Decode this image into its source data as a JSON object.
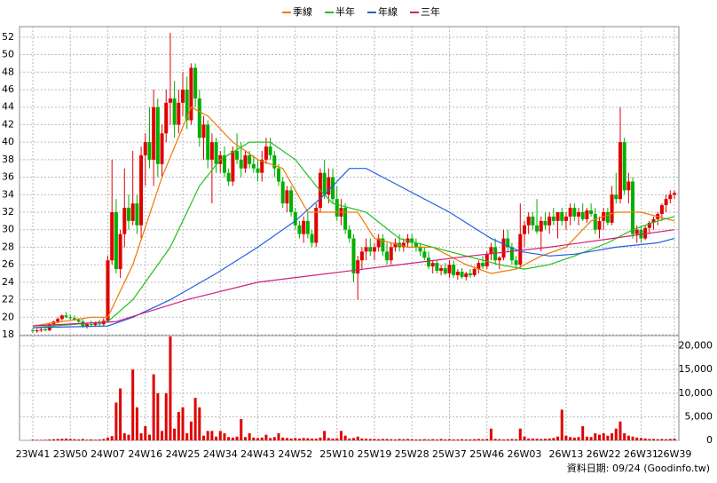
{
  "chart_data": {
    "type": "candlestick",
    "footer": "資料日期: 09/24  (Goodinfo.tw)",
    "up_color": "#e00000",
    "down_color": "#00b000",
    "grid": true,
    "categories": [
      "23W41",
      null,
      null,
      null,
      null,
      null,
      null,
      null,
      null,
      "23W50",
      null,
      null,
      null,
      null,
      null,
      null,
      null,
      null,
      "24W07",
      null,
      null,
      null,
      null,
      null,
      null,
      null,
      null,
      "24W16",
      null,
      null,
      null,
      null,
      null,
      null,
      null,
      null,
      "24W25",
      null,
      null,
      null,
      null,
      null,
      null,
      null,
      null,
      "24W34",
      null,
      null,
      null,
      null,
      null,
      null,
      null,
      null,
      "24W43",
      null,
      null,
      null,
      null,
      null,
      null,
      null,
      null,
      "24W52",
      null,
      null,
      null,
      null,
      null,
      null,
      null,
      null,
      null,
      "25W10",
      null,
      null,
      null,
      null,
      null,
      null,
      null,
      null,
      "25W19",
      null,
      null,
      null,
      null,
      null,
      null,
      null,
      null,
      "25W28",
      null,
      null,
      null,
      null,
      null,
      null,
      null,
      null,
      "25W37",
      null,
      null,
      null,
      null,
      null,
      null,
      null,
      null,
      "25W46",
      null,
      null,
      null,
      null,
      null,
      null,
      null,
      null,
      "26W03",
      null,
      null,
      null,
      null,
      null,
      null,
      null,
      null,
      null,
      "26W13",
      null,
      null,
      null,
      null,
      null,
      null,
      null,
      null,
      "26W22",
      null,
      null,
      null,
      null,
      null,
      null,
      null,
      null,
      "26W31",
      null,
      null,
      null,
      null,
      null,
      null,
      null,
      "26W39"
    ],
    "ohlc": [
      [
        18.5,
        18.8,
        18.2,
        18.4
      ],
      [
        18.4,
        18.7,
        18.2,
        18.5
      ],
      [
        18.5,
        18.8,
        18.3,
        18.6
      ],
      [
        18.6,
        19.0,
        18.4,
        18.5
      ],
      [
        18.5,
        19.4,
        18.4,
        19.2
      ],
      [
        19.2,
        19.6,
        19.0,
        19.5
      ],
      [
        19.5,
        20.0,
        19.3,
        19.8
      ],
      [
        19.8,
        20.3,
        19.6,
        20.2
      ],
      [
        20.2,
        20.6,
        19.9,
        20.0
      ],
      [
        20.0,
        20.3,
        19.7,
        19.9
      ],
      [
        19.9,
        20.2,
        19.6,
        19.7
      ],
      [
        19.7,
        19.9,
        19.3,
        19.5
      ],
      [
        19.5,
        19.8,
        18.8,
        19.0
      ],
      [
        19.0,
        19.4,
        18.7,
        19.2
      ],
      [
        19.2,
        19.6,
        18.9,
        19.1
      ],
      [
        19.1,
        19.5,
        18.9,
        19.3
      ],
      [
        19.3,
        19.7,
        19.0,
        19.2
      ],
      [
        19.2,
        19.9,
        19.0,
        19.6
      ],
      [
        19.6,
        27.0,
        19.5,
        26.5
      ],
      [
        26.5,
        38.0,
        26.0,
        32.0
      ],
      [
        32.0,
        33.5,
        25.0,
        25.5
      ],
      [
        25.5,
        30.0,
        24.5,
        29.5
      ],
      [
        29.5,
        37.0,
        28.0,
        32.5
      ],
      [
        32.5,
        34.0,
        30.0,
        31.0
      ],
      [
        31.0,
        39.0,
        30.5,
        33.0
      ],
      [
        33.0,
        34.0,
        29.5,
        30.5
      ],
      [
        30.5,
        39.5,
        29.0,
        38.5
      ],
      [
        38.5,
        41.0,
        35.0,
        40.0
      ],
      [
        40.0,
        44.0,
        37.0,
        38.0
      ],
      [
        38.0,
        46.0,
        35.0,
        44.0
      ],
      [
        44.0,
        45.0,
        36.0,
        37.5
      ],
      [
        37.5,
        42.0,
        36.0,
        41.0
      ],
      [
        41.0,
        46.0,
        40.0,
        44.5
      ],
      [
        44.5,
        52.5,
        42.0,
        45.0
      ],
      [
        45.0,
        47.0,
        40.5,
        42.0
      ],
      [
        42.0,
        46.0,
        41.0,
        44.5
      ],
      [
        44.5,
        48.0,
        43.0,
        46.0
      ],
      [
        46.0,
        47.5,
        41.5,
        42.5
      ],
      [
        42.5,
        49.0,
        42.0,
        48.5
      ],
      [
        48.5,
        49.0,
        44.0,
        45.0
      ],
      [
        45.0,
        46.0,
        39.5,
        40.5
      ],
      [
        40.5,
        43.0,
        38.0,
        42.0
      ],
      [
        42.0,
        42.5,
        37.0,
        38.0
      ],
      [
        38.0,
        41.0,
        33.0,
        40.0
      ],
      [
        40.0,
        40.5,
        36.5,
        37.5
      ],
      [
        37.5,
        39.0,
        36.5,
        38.5
      ],
      [
        38.5,
        39.5,
        36.0,
        36.5
      ],
      [
        36.5,
        37.0,
        35.0,
        35.5
      ],
      [
        35.5,
        39.5,
        35.0,
        39.0
      ],
      [
        39.0,
        41.0,
        37.5,
        38.0
      ],
      [
        38.0,
        40.0,
        36.0,
        37.0
      ],
      [
        37.0,
        39.0,
        36.5,
        38.5
      ],
      [
        38.5,
        39.0,
        37.0,
        37.5
      ],
      [
        37.5,
        38.5,
        36.5,
        37.0
      ],
      [
        37.0,
        38.0,
        35.5,
        36.5
      ],
      [
        36.5,
        39.0,
        35.5,
        38.0
      ],
      [
        38.0,
        40.5,
        37.5,
        39.5
      ],
      [
        39.5,
        40.5,
        38.0,
        38.5
      ],
      [
        38.5,
        39.0,
        36.0,
        37.0
      ],
      [
        37.0,
        37.5,
        35.0,
        35.5
      ],
      [
        35.5,
        36.0,
        32.5,
        33.0
      ],
      [
        33.0,
        35.0,
        32.0,
        34.5
      ],
      [
        34.5,
        35.0,
        31.5,
        32.0
      ],
      [
        32.0,
        32.5,
        30.0,
        30.5
      ],
      [
        30.5,
        31.0,
        29.0,
        29.5
      ],
      [
        29.5,
        31.5,
        28.5,
        31.0
      ],
      [
        31.0,
        32.0,
        29.0,
        29.5
      ],
      [
        29.5,
        30.0,
        28.0,
        28.5
      ],
      [
        28.5,
        33.0,
        28.0,
        32.5
      ],
      [
        32.5,
        37.0,
        32.0,
        36.5
      ],
      [
        36.5,
        38.0,
        33.5,
        34.0
      ],
      [
        34.0,
        37.0,
        33.0,
        36.0
      ],
      [
        36.0,
        37.0,
        33.0,
        33.5
      ],
      [
        33.5,
        35.0,
        31.0,
        31.5
      ],
      [
        31.5,
        33.5,
        30.5,
        32.5
      ],
      [
        32.5,
        33.0,
        29.5,
        30.0
      ],
      [
        30.0,
        30.5,
        28.5,
        29.0
      ],
      [
        29.0,
        29.5,
        24.0,
        25.0
      ],
      [
        25.0,
        27.0,
        22.0,
        26.5
      ],
      [
        26.5,
        28.0,
        25.5,
        27.5
      ],
      [
        27.5,
        29.0,
        26.5,
        28.0
      ],
      [
        28.0,
        29.0,
        27.0,
        27.5
      ],
      [
        27.5,
        28.5,
        26.5,
        28.0
      ],
      [
        28.0,
        29.5,
        27.5,
        29.0
      ],
      [
        29.0,
        29.5,
        27.0,
        27.5
      ],
      [
        27.5,
        28.5,
        26.0,
        26.5
      ],
      [
        26.5,
        28.5,
        26.0,
        28.0
      ],
      [
        28.0,
        29.0,
        27.5,
        28.5
      ],
      [
        28.5,
        29.5,
        27.5,
        28.0
      ],
      [
        28.0,
        29.0,
        27.5,
        28.5
      ],
      [
        28.5,
        29.5,
        28.0,
        29.0
      ],
      [
        29.0,
        29.5,
        28.0,
        28.5
      ],
      [
        28.5,
        29.0,
        27.5,
        28.0
      ],
      [
        28.0,
        28.5,
        27.0,
        27.5
      ],
      [
        27.5,
        28.0,
        26.5,
        26.8
      ],
      [
        26.8,
        27.5,
        25.5,
        25.8
      ],
      [
        25.8,
        26.5,
        25.0,
        26.2
      ],
      [
        26.2,
        26.5,
        25.0,
        25.3
      ],
      [
        25.3,
        26.0,
        24.8,
        25.6
      ],
      [
        25.6,
        26.2,
        24.8,
        25.0
      ],
      [
        25.0,
        26.5,
        24.5,
        26.0
      ],
      [
        26.0,
        26.5,
        24.5,
        24.8
      ],
      [
        24.8,
        25.5,
        24.3,
        25.2
      ],
      [
        25.2,
        25.6,
        24.4,
        24.6
      ],
      [
        24.6,
        25.2,
        24.2,
        25.0
      ],
      [
        25.0,
        25.5,
        24.5,
        24.8
      ],
      [
        24.8,
        25.8,
        24.6,
        25.5
      ],
      [
        25.5,
        26.5,
        25.0,
        26.2
      ],
      [
        26.2,
        27.0,
        25.5,
        25.8
      ],
      [
        25.8,
        27.5,
        25.5,
        27.2
      ],
      [
        27.2,
        28.5,
        26.5,
        28.0
      ],
      [
        28.0,
        29.0,
        26.0,
        26.5
      ],
      [
        26.5,
        27.0,
        25.5,
        26.8
      ],
      [
        26.8,
        30.0,
        26.5,
        29.0
      ],
      [
        29.0,
        30.0,
        27.5,
        28.0
      ],
      [
        28.0,
        28.5,
        26.0,
        26.5
      ],
      [
        26.5,
        27.0,
        25.5,
        26.0
      ],
      [
        26.0,
        33.0,
        25.5,
        29.5
      ],
      [
        29.5,
        31.0,
        28.0,
        30.5
      ],
      [
        30.5,
        32.0,
        29.5,
        31.5
      ],
      [
        31.5,
        32.0,
        30.0,
        30.5
      ],
      [
        30.5,
        33.5,
        29.5,
        29.8
      ],
      [
        29.8,
        31.5,
        27.5,
        31.0
      ],
      [
        31.0,
        32.0,
        30.0,
        30.5
      ],
      [
        30.5,
        32.0,
        29.5,
        31.5
      ],
      [
        31.5,
        32.5,
        30.5,
        31.0
      ],
      [
        31.0,
        32.0,
        29.0,
        32.0
      ],
      [
        32.0,
        32.5,
        30.5,
        31.0
      ],
      [
        31.0,
        32.0,
        30.0,
        31.5
      ],
      [
        31.5,
        33.0,
        30.5,
        32.5
      ],
      [
        32.5,
        33.0,
        31.0,
        31.5
      ],
      [
        31.5,
        32.5,
        30.5,
        32.0
      ],
      [
        32.0,
        33.0,
        31.0,
        31.2
      ],
      [
        31.2,
        32.5,
        30.8,
        32.2
      ],
      [
        32.2,
        33.0,
        31.5,
        31.8
      ],
      [
        31.8,
        32.5,
        29.5,
        30.0
      ],
      [
        30.0,
        31.5,
        29.0,
        31.0
      ],
      [
        31.0,
        32.5,
        30.0,
        32.0
      ],
      [
        32.0,
        32.5,
        30.5,
        30.8
      ],
      [
        30.8,
        35.0,
        30.5,
        34.0
      ],
      [
        34.0,
        36.5,
        33.0,
        33.5
      ],
      [
        33.5,
        44.0,
        33.0,
        40.0
      ],
      [
        40.0,
        40.5,
        34.0,
        34.5
      ],
      [
        34.5,
        36.5,
        33.0,
        35.5
      ],
      [
        35.5,
        36.0,
        29.0,
        29.5
      ],
      [
        29.5,
        30.5,
        28.5,
        30.0
      ],
      [
        30.0,
        30.5,
        28.5,
        29.0
      ],
      [
        29.0,
        30.5,
        28.8,
        30.2
      ],
      [
        30.2,
        31.0,
        29.5,
        30.8
      ],
      [
        30.8,
        31.5,
        30.0,
        31.2
      ],
      [
        31.2,
        32.0,
        30.5,
        31.8
      ],
      [
        31.8,
        33.0,
        31.0,
        32.8
      ],
      [
        32.8,
        34.0,
        32.0,
        33.5
      ],
      [
        33.5,
        34.5,
        33.0,
        34.0
      ],
      [
        34.0,
        34.5,
        33.5,
        34.2
      ]
    ],
    "ylim": [
      18,
      53.2
    ],
    "yticks": [
      18,
      20,
      22,
      24,
      26,
      28,
      30,
      32,
      34,
      36,
      38,
      40,
      42,
      44,
      46,
      48,
      50,
      52
    ],
    "series": [
      {
        "name": "季線",
        "color": "#f07800",
        "x": [
          0,
          14,
          18,
          24,
          31,
          38,
          42,
          48,
          54,
          60,
          66,
          72,
          78,
          82,
          90,
          96,
          104,
          110,
          116,
          122,
          128,
          134,
          140,
          146,
          154
        ],
        "values": [
          19,
          20,
          20,
          26,
          36,
          44,
          43,
          40,
          38,
          37,
          32,
          32,
          32,
          29,
          28,
          28,
          26,
          25,
          25.5,
          27,
          28,
          31,
          32,
          32,
          31
        ]
      },
      {
        "name": "半年",
        "color": "#20c020",
        "x": [
          0,
          18,
          24,
          33,
          40,
          45,
          52,
          57,
          63,
          68,
          72,
          80,
          88,
          96,
          104,
          112,
          118,
          124,
          130,
          138,
          144,
          150,
          154
        ],
        "values": [
          18.8,
          19.5,
          22,
          28,
          35,
          38,
          40,
          40,
          38,
          35,
          33,
          32,
          29,
          28,
          27,
          26,
          25.5,
          26,
          27,
          28.5,
          30,
          31,
          31.5
        ]
      },
      {
        "name": "年線",
        "color": "#2060e0",
        "x": [
          0,
          18,
          24,
          33,
          44,
          54,
          63,
          70,
          76,
          80,
          88,
          100,
          110,
          117,
          124,
          130,
          140,
          150,
          154
        ],
        "values": [
          18.8,
          19,
          20,
          22,
          25,
          28,
          31,
          34,
          37,
          37,
          35,
          32,
          29,
          27.5,
          27,
          27.2,
          28,
          28.5,
          29
        ]
      },
      {
        "name": "三年",
        "color": "#d0207a",
        "x": [
          0,
          20,
          37,
          54,
          71,
          88,
          105,
          124,
          139,
          154
        ],
        "values": [
          19,
          19.5,
          22,
          24,
          25,
          26,
          27,
          28,
          29,
          30
        ]
      }
    ],
    "volume": {
      "color": "#e00000",
      "values": [
        150,
        120,
        100,
        130,
        200,
        250,
        300,
        350,
        400,
        300,
        250,
        200,
        300,
        150,
        200,
        150,
        200,
        300,
        600,
        900,
        8000,
        11000,
        1500,
        1200,
        15000,
        7000,
        1500,
        3000,
        1200,
        14000,
        10000,
        2000,
        10000,
        22000,
        2500,
        6000,
        7000,
        1500,
        4000,
        9000,
        7000,
        1000,
        2000,
        2000,
        800,
        2000,
        1500,
        700,
        600,
        800,
        4500,
        700,
        1500,
        600,
        500,
        600,
        1200,
        500,
        700,
        1500,
        600,
        500,
        400,
        500,
        400,
        500,
        450,
        400,
        350,
        600,
        2000,
        500,
        400,
        450,
        2000,
        1000,
        400,
        500,
        800,
        400,
        350,
        300,
        300,
        250,
        300,
        300,
        250,
        200,
        300,
        250,
        300,
        250,
        200,
        200,
        250,
        200,
        250,
        200,
        300,
        200,
        250,
        200,
        200,
        250,
        200,
        200,
        250,
        300,
        250,
        300,
        2500,
        300,
        250,
        200,
        250,
        300,
        250,
        2500,
        800,
        400,
        400,
        350,
        300,
        350,
        400,
        500,
        800,
        6500,
        1000,
        700,
        600,
        700,
        3000,
        800,
        700,
        1500,
        1200,
        1500,
        1000,
        1500,
        2500,
        4000,
        1500,
        1000,
        800,
        600,
        500,
        400,
        300,
        300,
        250,
        300,
        250,
        300,
        400
      ],
      "ylim": [
        0,
        22000
      ],
      "yticks": [
        0,
        {
          "value": 5000,
          "label": "5,000"
        },
        {
          "value": 10000,
          "label": "10,000"
        },
        {
          "value": 15000,
          "label": "15,000"
        },
        {
          "value": 20000,
          "label": "20,000"
        }
      ]
    }
  }
}
